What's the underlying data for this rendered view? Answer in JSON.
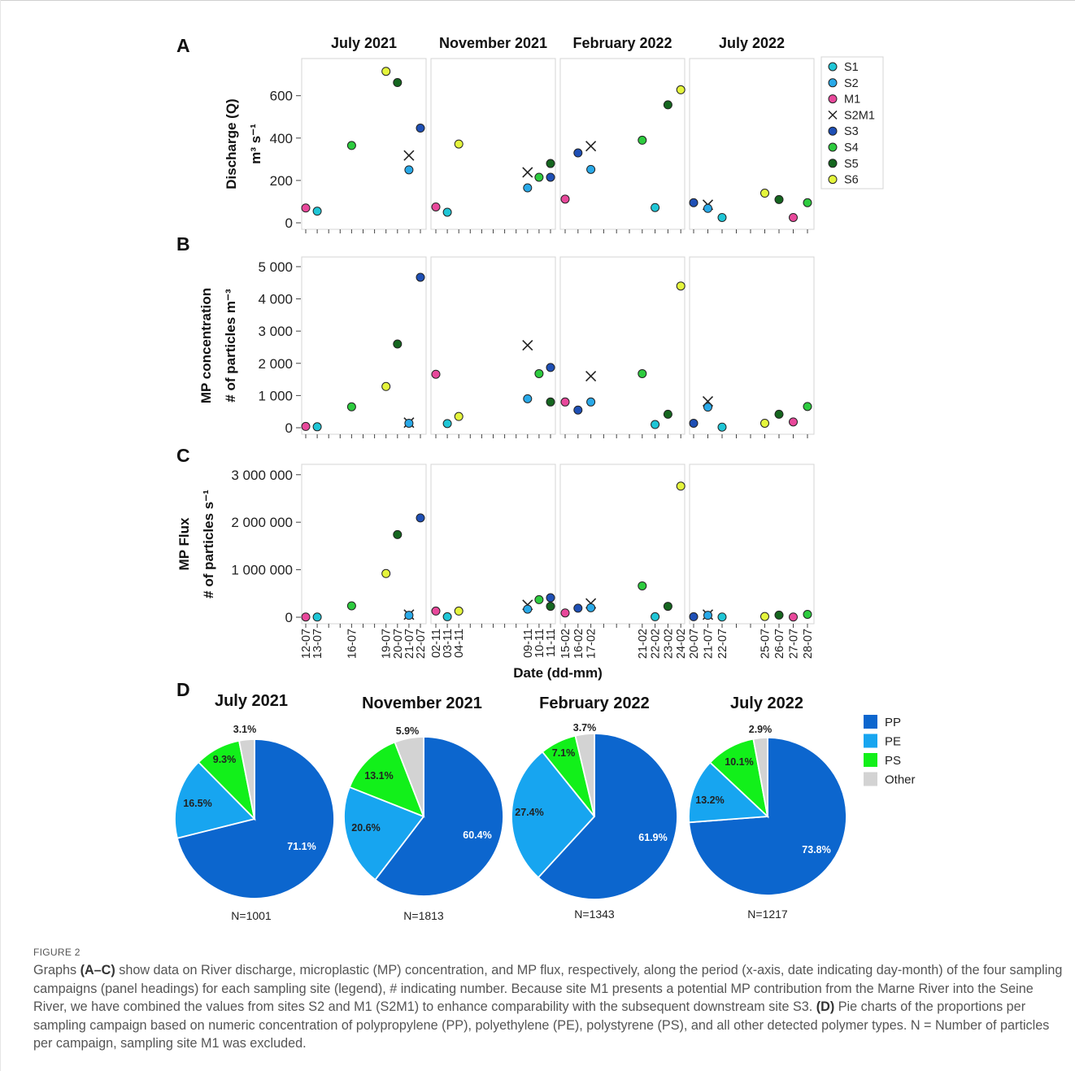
{
  "panel_letters": {
    "A": "A",
    "B": "B",
    "C": "C",
    "D": "D"
  },
  "campaigns": [
    "July 2021",
    "November 2021",
    "February 2022",
    "July 2022"
  ],
  "legend": [
    {
      "name": "S1",
      "color": "#1FC6D6",
      "marker": "circle"
    },
    {
      "name": "S2",
      "color": "#29A9E8",
      "marker": "circle"
    },
    {
      "name": "M1",
      "color": "#E8489B",
      "marker": "circle"
    },
    {
      "name": "S2M1",
      "color": "#222222",
      "marker": "cross"
    },
    {
      "name": "S3",
      "color": "#1E4FB5",
      "marker": "circle"
    },
    {
      "name": "S4",
      "color": "#2DCB3E",
      "marker": "circle"
    },
    {
      "name": "S5",
      "color": "#15661F",
      "marker": "circle"
    },
    {
      "name": "S6",
      "color": "#E4F53C",
      "marker": "circle"
    }
  ],
  "x_tick_labels": [
    [
      "12-07",
      "13-07",
      "",
      "",
      "16-07",
      "",
      "",
      "19-07",
      "20-07",
      "21-07",
      "22-07"
    ],
    [
      "02-11",
      "03-11",
      "04-11",
      "",
      "",
      "",
      "",
      "",
      "09-11",
      "10-11",
      "11-11"
    ],
    [
      "15-02",
      "16-02",
      "17-02",
      "",
      "",
      "",
      "21-02",
      "22-02",
      "23-02",
      "24-02"
    ],
    [
      "20-07",
      "21-07",
      "22-07",
      "",
      "",
      "25-07",
      "26-07",
      "27-07",
      "28-07"
    ]
  ],
  "xlabel": "Date (dd-mm)",
  "chart_data": [
    {
      "type": "scatter",
      "panel": "A",
      "ylabel": [
        "Discharge (Q)",
        "m³ s⁻¹"
      ],
      "ylim": [
        0,
        760
      ],
      "yticks": [
        0,
        200,
        400,
        600
      ],
      "ytick_labels": [
        "0",
        "200",
        "400",
        "600"
      ],
      "points": [
        [
          "July 2021",
          "12-07",
          "M1",
          70
        ],
        [
          "July 2021",
          "13-07",
          "S1",
          55
        ],
        [
          "July 2021",
          "16-07",
          "S4",
          365
        ],
        [
          "July 2021",
          "19-07",
          "S6",
          715
        ],
        [
          "July 2021",
          "20-07",
          "S5",
          662
        ],
        [
          "July 2021",
          "21-07",
          "S2M1",
          318
        ],
        [
          "July 2021",
          "21-07",
          "S2",
          250
        ],
        [
          "July 2021",
          "22-07",
          "S3",
          447
        ],
        [
          "November 2021",
          "02-11",
          "M1",
          75
        ],
        [
          "November 2021",
          "03-11",
          "S1",
          50
        ],
        [
          "November 2021",
          "04-11",
          "S6",
          372
        ],
        [
          "November 2021",
          "09-11",
          "S2M1",
          238
        ],
        [
          "November 2021",
          "09-11",
          "S2",
          165
        ],
        [
          "November 2021",
          "10-11",
          "S4",
          215
        ],
        [
          "November 2021",
          "11-11",
          "S5",
          280
        ],
        [
          "November 2021",
          "11-11",
          "S3",
          215
        ],
        [
          "February 2022",
          "15-02",
          "M1",
          112
        ],
        [
          "February 2022",
          "16-02",
          "S3",
          330
        ],
        [
          "February 2022",
          "17-02",
          "S2M1",
          362
        ],
        [
          "February 2022",
          "17-02",
          "S2",
          252
        ],
        [
          "February 2022",
          "21-02",
          "S4",
          390
        ],
        [
          "February 2022",
          "22-02",
          "S1",
          72
        ],
        [
          "February 2022",
          "23-02",
          "S5",
          557
        ],
        [
          "February 2022",
          "24-02",
          "S6",
          628
        ],
        [
          "July 2022",
          "20-07",
          "S3",
          95
        ],
        [
          "July 2022",
          "21-07",
          "S2M1",
          85
        ],
        [
          "July 2022",
          "21-07",
          "S2",
          68
        ],
        [
          "July 2022",
          "22-07",
          "S1",
          25
        ],
        [
          "July 2022",
          "25-07",
          "S6",
          140
        ],
        [
          "July 2022",
          "26-07",
          "S5",
          110
        ],
        [
          "July 2022",
          "27-07",
          "M1",
          25
        ],
        [
          "July 2022",
          "28-07",
          "S4",
          95
        ]
      ]
    },
    {
      "type": "scatter",
      "panel": "B",
      "ylabel": [
        "MP concentration",
        "# of particles m⁻³"
      ],
      "ylim": [
        0,
        5200
      ],
      "yticks": [
        0,
        1000,
        2000,
        3000,
        4000,
        5000
      ],
      "ytick_labels": [
        "0",
        "1 000",
        "2 000",
        "3 000",
        "4 000",
        "5 000"
      ],
      "points": [
        [
          "July 2021",
          "12-07",
          "M1",
          40
        ],
        [
          "July 2021",
          "13-07",
          "S1",
          30
        ],
        [
          "July 2021",
          "16-07",
          "S4",
          650
        ],
        [
          "July 2021",
          "19-07",
          "S6",
          1280
        ],
        [
          "July 2021",
          "20-07",
          "S5",
          2600
        ],
        [
          "July 2021",
          "21-07",
          "S2M1",
          160
        ],
        [
          "July 2021",
          "21-07",
          "S2",
          140
        ],
        [
          "July 2021",
          "22-07",
          "S3",
          4670
        ],
        [
          "November 2021",
          "02-11",
          "M1",
          1660
        ],
        [
          "November 2021",
          "03-11",
          "S1",
          130
        ],
        [
          "November 2021",
          "04-11",
          "S6",
          350
        ],
        [
          "November 2021",
          "09-11",
          "S2M1",
          2560
        ],
        [
          "November 2021",
          "09-11",
          "S2",
          900
        ],
        [
          "November 2021",
          "10-11",
          "S4",
          1680
        ],
        [
          "November 2021",
          "11-11",
          "S3",
          1870
        ],
        [
          "November 2021",
          "11-11",
          "S5",
          800
        ],
        [
          "February 2022",
          "15-02",
          "M1",
          800
        ],
        [
          "February 2022",
          "16-02",
          "S3",
          550
        ],
        [
          "February 2022",
          "17-02",
          "S2M1",
          1600
        ],
        [
          "February 2022",
          "17-02",
          "S2",
          800
        ],
        [
          "February 2022",
          "21-02",
          "S4",
          1680
        ],
        [
          "February 2022",
          "22-02",
          "S1",
          100
        ],
        [
          "February 2022",
          "23-02",
          "S5",
          420
        ],
        [
          "February 2022",
          "24-02",
          "S6",
          4400
        ],
        [
          "July 2022",
          "20-07",
          "S3",
          140
        ],
        [
          "July 2022",
          "21-07",
          "S2M1",
          820
        ],
        [
          "July 2022",
          "21-07",
          "S2",
          640
        ],
        [
          "July 2022",
          "22-07",
          "S1",
          20
        ],
        [
          "July 2022",
          "25-07",
          "S6",
          140
        ],
        [
          "July 2022",
          "26-07",
          "S5",
          420
        ],
        [
          "July 2022",
          "27-07",
          "M1",
          180
        ],
        [
          "July 2022",
          "28-07",
          "S4",
          660
        ]
      ]
    },
    {
      "type": "scatter",
      "panel": "C",
      "ylabel": [
        "MP Flux",
        "# of particles s⁻¹"
      ],
      "ylim": [
        0,
        3150000
      ],
      "yticks": [
        0,
        1000000,
        2000000,
        3000000
      ],
      "ytick_labels": [
        "0",
        "1 000 000",
        "2 000 000",
        "3 000 000"
      ],
      "points": [
        [
          "July 2021",
          "12-07",
          "M1",
          5000
        ],
        [
          "July 2021",
          "13-07",
          "S1",
          4000
        ],
        [
          "July 2021",
          "16-07",
          "S4",
          240000
        ],
        [
          "July 2021",
          "19-07",
          "S6",
          920000
        ],
        [
          "July 2021",
          "20-07",
          "S5",
          1740000
        ],
        [
          "July 2021",
          "21-07",
          "S2M1",
          55000
        ],
        [
          "July 2021",
          "21-07",
          "S2",
          40000
        ],
        [
          "July 2021",
          "22-07",
          "S3",
          2090000
        ],
        [
          "November 2021",
          "02-11",
          "M1",
          130000
        ],
        [
          "November 2021",
          "03-11",
          "S1",
          10000
        ],
        [
          "November 2021",
          "04-11",
          "S6",
          130000
        ],
        [
          "November 2021",
          "09-11",
          "S2M1",
          260000
        ],
        [
          "November 2021",
          "09-11",
          "S2",
          170000
        ],
        [
          "November 2021",
          "10-11",
          "S4",
          370000
        ],
        [
          "November 2021",
          "11-11",
          "S3",
          410000
        ],
        [
          "November 2021",
          "11-11",
          "S5",
          230000
        ],
        [
          "February 2022",
          "15-02",
          "M1",
          90000
        ],
        [
          "February 2022",
          "16-02",
          "S3",
          190000
        ],
        [
          "February 2022",
          "17-02",
          "S2M1",
          290000
        ],
        [
          "February 2022",
          "17-02",
          "S2",
          200000
        ],
        [
          "February 2022",
          "21-02",
          "S4",
          660000
        ],
        [
          "February 2022",
          "22-02",
          "S1",
          10000
        ],
        [
          "February 2022",
          "23-02",
          "S5",
          230000
        ],
        [
          "February 2022",
          "24-02",
          "S6",
          2760000
        ],
        [
          "July 2022",
          "20-07",
          "S3",
          10000
        ],
        [
          "July 2022",
          "21-07",
          "S2M1",
          55000
        ],
        [
          "July 2022",
          "21-07",
          "S2",
          40000
        ],
        [
          "July 2022",
          "22-07",
          "S1",
          5000
        ],
        [
          "July 2022",
          "25-07",
          "S6",
          15000
        ],
        [
          "July 2022",
          "26-07",
          "S5",
          45000
        ],
        [
          "July 2022",
          "27-07",
          "M1",
          5000
        ],
        [
          "July 2022",
          "28-07",
          "S4",
          60000
        ]
      ]
    },
    {
      "type": "pie",
      "panel": "D",
      "legend": [
        {
          "name": "PP",
          "color": "#0C66CE"
        },
        {
          "name": "PE",
          "color": "#17A5F0"
        },
        {
          "name": "PS",
          "color": "#12F01A"
        },
        {
          "name": "Other",
          "color": "#D3D3D3"
        }
      ],
      "pies": [
        {
          "title": "July 2021",
          "n_label": "N=1001",
          "values": [
            71.1,
            16.5,
            9.3,
            3.1
          ],
          "labels": [
            "71.1%",
            "16.5%",
            "9.3%",
            "3.1%"
          ]
        },
        {
          "title": "November 2021",
          "n_label": "N=1813",
          "values": [
            60.4,
            20.6,
            13.1,
            5.9
          ],
          "labels": [
            "60.4%",
            "20.6%",
            "13.1%",
            "5.9%"
          ]
        },
        {
          "title": "February 2022",
          "n_label": "N=1343",
          "values": [
            61.9,
            27.4,
            7.1,
            3.7
          ],
          "labels": [
            "61.9%",
            "27.4%",
            "7.1%",
            "3.7%"
          ]
        },
        {
          "title": "July 2022",
          "n_label": "N=1217",
          "values": [
            73.8,
            13.2,
            10.1,
            2.9
          ],
          "labels": [
            "73.8%",
            "13.2%",
            "10.1%",
            "2.9%"
          ]
        }
      ]
    }
  ],
  "caption": {
    "label": "FIGURE 2",
    "seg1": "Graphs ",
    "bold1": "(A–C)",
    "seg2": " show data on River discharge, microplastic (MP) concentration, and MP flux, respectively, along the period (x-axis, date indicating day-month) of the four sampling campaigns (panel headings) for each sampling site (legend), # indicating number. Because site M1 presents a potential MP contribution from the Marne River into the Seine River, we have combined the values from sites S2 and M1 (S2M1) to enhance comparability with the subsequent downstream site S3. ",
    "bold2": "(D)",
    "seg3": " Pie charts of the proportions per sampling campaign based on numeric concentration of polypropylene (PP), polyethylene (PE), polystyrene (PS), and all other detected polymer types. N = Number of particles per campaign, sampling site M1 was excluded."
  }
}
